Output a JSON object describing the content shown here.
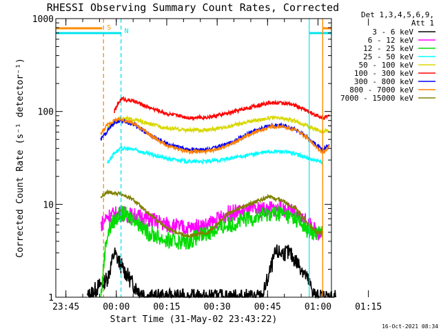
{
  "chart_data": {
    "type": "line",
    "title": "RHESSI Observing Summary Count Rates, Corrected",
    "xlabel": "Start Time (31-May-02 23:43:22)",
    "ylabel": "Corrected Count Rate (s⁻¹ detector⁻¹)",
    "yscale": "log",
    "ylim": [
      1,
      1000
    ],
    "xlim_min": [
      -1.4,
      80.6
    ],
    "x_unit": "minutes after 31-May-02 23:43:22",
    "x_ticks": [
      {
        "label": "23:45",
        "min": 1.6
      },
      {
        "label": "00:00",
        "min": 16.6
      },
      {
        "label": "00:15",
        "min": 31.6
      },
      {
        "label": "00:30",
        "min": 46.6
      },
      {
        "label": "00:45",
        "min": 61.6
      },
      {
        "label": "01:00",
        "min": 76.6
      },
      {
        "label": "01:15",
        "min": 91.6
      }
    ],
    "y_ticks": [
      {
        "label": "1",
        "value": 1
      },
      {
        "label": "10",
        "value": 10
      },
      {
        "label": "100",
        "value": 100
      },
      {
        "label": "1000",
        "value": 1000
      }
    ],
    "legend": {
      "position": "right",
      "header": [
        "Det 1,3,4,5,6,9,",
        "Att 1"
      ]
    },
    "annotations": [
      {
        "label": "S",
        "color": "#ff8c00",
        "x_min": 12.8
      },
      {
        "label": "N",
        "color": "#00e5ee",
        "x_min": 18.0
      }
    ],
    "series": [
      {
        "name": "3 - 6 keV",
        "color": "#000000",
        "anchors": [
          [
            8,
            1
          ],
          [
            14,
            1.6
          ],
          [
            16,
            3
          ],
          [
            18,
            2.2
          ],
          [
            22,
            1.3
          ],
          [
            26,
            1
          ],
          [
            60,
            1
          ],
          [
            64,
            3
          ],
          [
            68,
            3
          ],
          [
            72,
            2
          ],
          [
            76,
            1
          ],
          [
            82,
            1
          ]
        ]
      },
      {
        "name": "6 - 12 keV",
        "color": "#ff00ff",
        "anchors": [
          [
            12,
            6
          ],
          [
            14,
            7.5
          ],
          [
            18,
            8
          ],
          [
            22,
            7.5
          ],
          [
            26,
            7
          ],
          [
            32,
            6
          ],
          [
            38,
            5.5
          ],
          [
            44,
            6
          ],
          [
            50,
            8
          ],
          [
            56,
            8.5
          ],
          [
            62,
            9
          ],
          [
            66,
            9
          ],
          [
            70,
            8
          ],
          [
            74,
            6
          ],
          [
            76,
            5
          ],
          [
            78,
            5
          ]
        ]
      },
      {
        "name": "12 - 25 keV",
        "color": "#00dd00",
        "anchors": [
          [
            12,
            1
          ],
          [
            13.5,
            4
          ],
          [
            15,
            6
          ],
          [
            18,
            8
          ],
          [
            22,
            7
          ],
          [
            26,
            5
          ],
          [
            32,
            4
          ],
          [
            38,
            4
          ],
          [
            44,
            5
          ],
          [
            50,
            6
          ],
          [
            56,
            7
          ],
          [
            62,
            8
          ],
          [
            66,
            8
          ],
          [
            70,
            7
          ],
          [
            74,
            5
          ],
          [
            76,
            5
          ],
          [
            78,
            5
          ]
        ]
      },
      {
        "name": "25 - 50 keV",
        "color": "#00ffff",
        "anchors": [
          [
            14,
            28
          ],
          [
            16,
            36
          ],
          [
            18,
            40
          ],
          [
            22,
            39
          ],
          [
            26,
            35
          ],
          [
            32,
            31
          ],
          [
            38,
            29
          ],
          [
            44,
            29
          ],
          [
            50,
            31
          ],
          [
            56,
            34
          ],
          [
            62,
            37
          ],
          [
            66,
            37
          ],
          [
            70,
            35
          ],
          [
            74,
            31
          ],
          [
            78,
            28
          ]
        ]
      },
      {
        "name": "50 - 100 keV",
        "color": "#d8d800",
        "anchors": [
          [
            14,
            65
          ],
          [
            16,
            78
          ],
          [
            18,
            84
          ],
          [
            22,
            82
          ],
          [
            26,
            74
          ],
          [
            32,
            66
          ],
          [
            38,
            63
          ],
          [
            44,
            63
          ],
          [
            50,
            69
          ],
          [
            56,
            78
          ],
          [
            62,
            85
          ],
          [
            66,
            84
          ],
          [
            70,
            79
          ],
          [
            74,
            68
          ],
          [
            78,
            61
          ],
          [
            80,
            62
          ]
        ]
      },
      {
        "name": "100 - 300 keV",
        "color": "#ff0000",
        "anchors": [
          [
            16,
            100
          ],
          [
            18,
            138
          ],
          [
            22,
            128
          ],
          [
            26,
            112
          ],
          [
            32,
            94
          ],
          [
            38,
            86
          ],
          [
            44,
            87
          ],
          [
            50,
            96
          ],
          [
            56,
            110
          ],
          [
            62,
            124
          ],
          [
            66,
            124
          ],
          [
            70,
            116
          ],
          [
            74,
            99
          ],
          [
            78,
            84
          ],
          [
            80,
            90
          ]
        ]
      },
      {
        "name": "300 - 800 keV",
        "color": "#0000ff",
        "anchors": [
          [
            12,
            50
          ],
          [
            14,
            62
          ],
          [
            16,
            76
          ],
          [
            18,
            80
          ],
          [
            22,
            72
          ],
          [
            26,
            57
          ],
          [
            32,
            44
          ],
          [
            38,
            39
          ],
          [
            44,
            39
          ],
          [
            50,
            45
          ],
          [
            56,
            58
          ],
          [
            62,
            70
          ],
          [
            66,
            71
          ],
          [
            70,
            64
          ],
          [
            74,
            51
          ],
          [
            78,
            38
          ],
          [
            80,
            45
          ]
        ]
      },
      {
        "name": "800 - 7000 keV",
        "color": "#ff8000",
        "anchors": [
          [
            12,
            58
          ],
          [
            14,
            72
          ],
          [
            16,
            80
          ],
          [
            18,
            82
          ],
          [
            22,
            74
          ],
          [
            26,
            58
          ],
          [
            32,
            42
          ],
          [
            38,
            37
          ],
          [
            44,
            37
          ],
          [
            50,
            43
          ],
          [
            56,
            56
          ],
          [
            62,
            68
          ],
          [
            66,
            69
          ],
          [
            70,
            63
          ],
          [
            74,
            50
          ],
          [
            78,
            36
          ],
          [
            80,
            42
          ]
        ]
      },
      {
        "name": "7000 - 15000 keV",
        "color": "#808000",
        "anchors": [
          [
            12,
            12
          ],
          [
            14,
            13.5
          ],
          [
            18,
            13
          ],
          [
            22,
            11
          ],
          [
            26,
            8
          ],
          [
            32,
            5.5
          ],
          [
            38,
            4.5
          ],
          [
            44,
            5
          ],
          [
            50,
            8
          ],
          [
            56,
            10
          ],
          [
            62,
            12
          ],
          [
            66,
            11
          ],
          [
            70,
            9
          ],
          [
            74,
            6
          ],
          [
            76,
            5
          ],
          [
            78,
            5
          ]
        ]
      }
    ],
    "grid": false
  },
  "timestamp": "16-Oct-2021 08:34"
}
